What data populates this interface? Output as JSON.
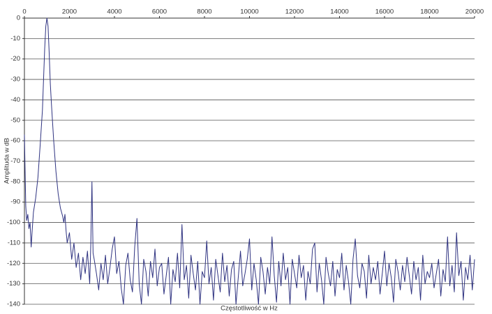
{
  "chart_data": {
    "type": "line",
    "x_label": "Częstotliwość w Hz",
    "y_label": "Amplituda w dB",
    "color": "#2e3280",
    "xlim": [
      0,
      20000
    ],
    "xticks": [
      0,
      2000,
      4000,
      6000,
      8000,
      10000,
      12000,
      14000,
      16000,
      18000,
      20000
    ],
    "ylim": [
      -140,
      0
    ],
    "yticks": [
      0,
      -10,
      -20,
      -30,
      -40,
      -50,
      -60,
      -70,
      -80,
      -90,
      -100,
      -110,
      -120,
      -130,
      -140
    ],
    "grid": true,
    "x": [
      0,
      30,
      60,
      100,
      150,
      200,
      250,
      300,
      350,
      400,
      500,
      600,
      700,
      800,
      850,
      900,
      950,
      1000,
      1050,
      1100,
      1150,
      1200,
      1300,
      1400,
      1500,
      1600,
      1700,
      1750,
      1800,
      1850,
      1900,
      2000,
      2100,
      2200,
      2300,
      2400,
      2500,
      2600,
      2700,
      2800,
      2900,
      2950,
      3000,
      3050,
      3100,
      3200,
      3300,
      3400,
      3500,
      3600,
      3700,
      3800,
      3900,
      4000,
      4100,
      4200,
      4300,
      4400,
      4500,
      4600,
      4700,
      4800,
      4900,
      5000,
      5100,
      5200,
      5300,
      5400,
      5500,
      5600,
      5700,
      5800,
      5900,
      6000,
      6100,
      6200,
      6300,
      6400,
      6500,
      6600,
      6700,
      6800,
      6900,
      7000,
      7100,
      7200,
      7300,
      7400,
      7500,
      7600,
      7700,
      7800,
      7900,
      8000,
      8100,
      8200,
      8300,
      8400,
      8500,
      8600,
      8700,
      8800,
      8900,
      9000,
      9100,
      9200,
      9300,
      9400,
      9500,
      9600,
      9700,
      9800,
      9900,
      10000,
      10100,
      10200,
      10300,
      10400,
      10500,
      10600,
      10700,
      10800,
      10900,
      11000,
      11100,
      11200,
      11300,
      11400,
      11500,
      11600,
      11700,
      11800,
      11900,
      12000,
      12100,
      12200,
      12300,
      12400,
      12500,
      12600,
      12700,
      12800,
      12900,
      13000,
      13100,
      13200,
      13300,
      13400,
      13500,
      13600,
      13700,
      13800,
      13900,
      14000,
      14100,
      14200,
      14300,
      14400,
      14500,
      14600,
      14700,
      14800,
      14900,
      15000,
      15100,
      15200,
      15300,
      15400,
      15500,
      15600,
      15700,
      15800,
      15900,
      16000,
      16100,
      16200,
      16300,
      16400,
      16500,
      16600,
      16700,
      16800,
      16900,
      17000,
      17100,
      17200,
      17300,
      17400,
      17500,
      17600,
      17700,
      17800,
      17900,
      18000,
      18100,
      18200,
      18300,
      18400,
      18500,
      18600,
      18700,
      18800,
      18900,
      19000,
      19100,
      19200,
      19300,
      19400,
      19500,
      19600,
      19700,
      19800,
      19900,
      20000
    ],
    "values": [
      -57,
      -75,
      -92,
      -99,
      -96,
      -103,
      -100,
      -112,
      -103,
      -95,
      -88,
      -78,
      -62,
      -45,
      -30,
      -15,
      -4,
      0,
      -4,
      -17,
      -32,
      -42,
      -60,
      -75,
      -86,
      -93,
      -97,
      -100,
      -96,
      -104,
      -110,
      -105,
      -118,
      -110,
      -122,
      -115,
      -128,
      -117,
      -125,
      -114,
      -130,
      -110,
      -80,
      -115,
      -118,
      -125,
      -133,
      -120,
      -128,
      -116,
      -130,
      -122,
      -113,
      -107,
      -125,
      -119,
      -132,
      -140,
      -121,
      -115,
      -128,
      -134,
      -112,
      -98,
      -130,
      -140,
      -118,
      -124,
      -136,
      -119,
      -127,
      -113,
      -131,
      -122,
      -120,
      -135,
      -126,
      -117,
      -140,
      -123,
      -129,
      -115,
      -132,
      -101,
      -128,
      -121,
      -137,
      -116,
      -125,
      -133,
      -119,
      -140,
      -124,
      -127,
      -109,
      -130,
      -122,
      -138,
      -118,
      -126,
      -134,
      -115,
      -129,
      -121,
      -136,
      -123,
      -119,
      -140,
      -127,
      -114,
      -131,
      -125,
      -118,
      -108,
      -133,
      -120,
      -128,
      -140,
      -117,
      -124,
      -135,
      -122,
      -130,
      -107,
      -126,
      -139,
      -119,
      -131,
      -115,
      -128,
      -122,
      -140,
      -118,
      -125,
      -132,
      -116,
      -127,
      -121,
      -138,
      -124,
      -130,
      -113,
      -110,
      -134,
      -120,
      -128,
      -140,
      -117,
      -125,
      -131,
      -119,
      -136,
      -123,
      -127,
      -115,
      -133,
      -121,
      -129,
      -140,
      -118,
      -108,
      -126,
      -132,
      -120,
      -124,
      -137,
      -116,
      -130,
      -122,
      -128,
      -119,
      -135,
      -125,
      -114,
      -131,
      -120,
      -127,
      -139,
      -118,
      -124,
      -133,
      -121,
      -129,
      -117,
      -126,
      -135,
      -119,
      -128,
      -122,
      -138,
      -116,
      -130,
      -124,
      -127,
      -120,
      -132,
      -125,
      -118,
      -136,
      -123,
      -129,
      -107,
      -131,
      -121,
      -134,
      -105,
      -126,
      -119,
      -138,
      -122,
      -128,
      -116,
      -133,
      -118
    ]
  }
}
